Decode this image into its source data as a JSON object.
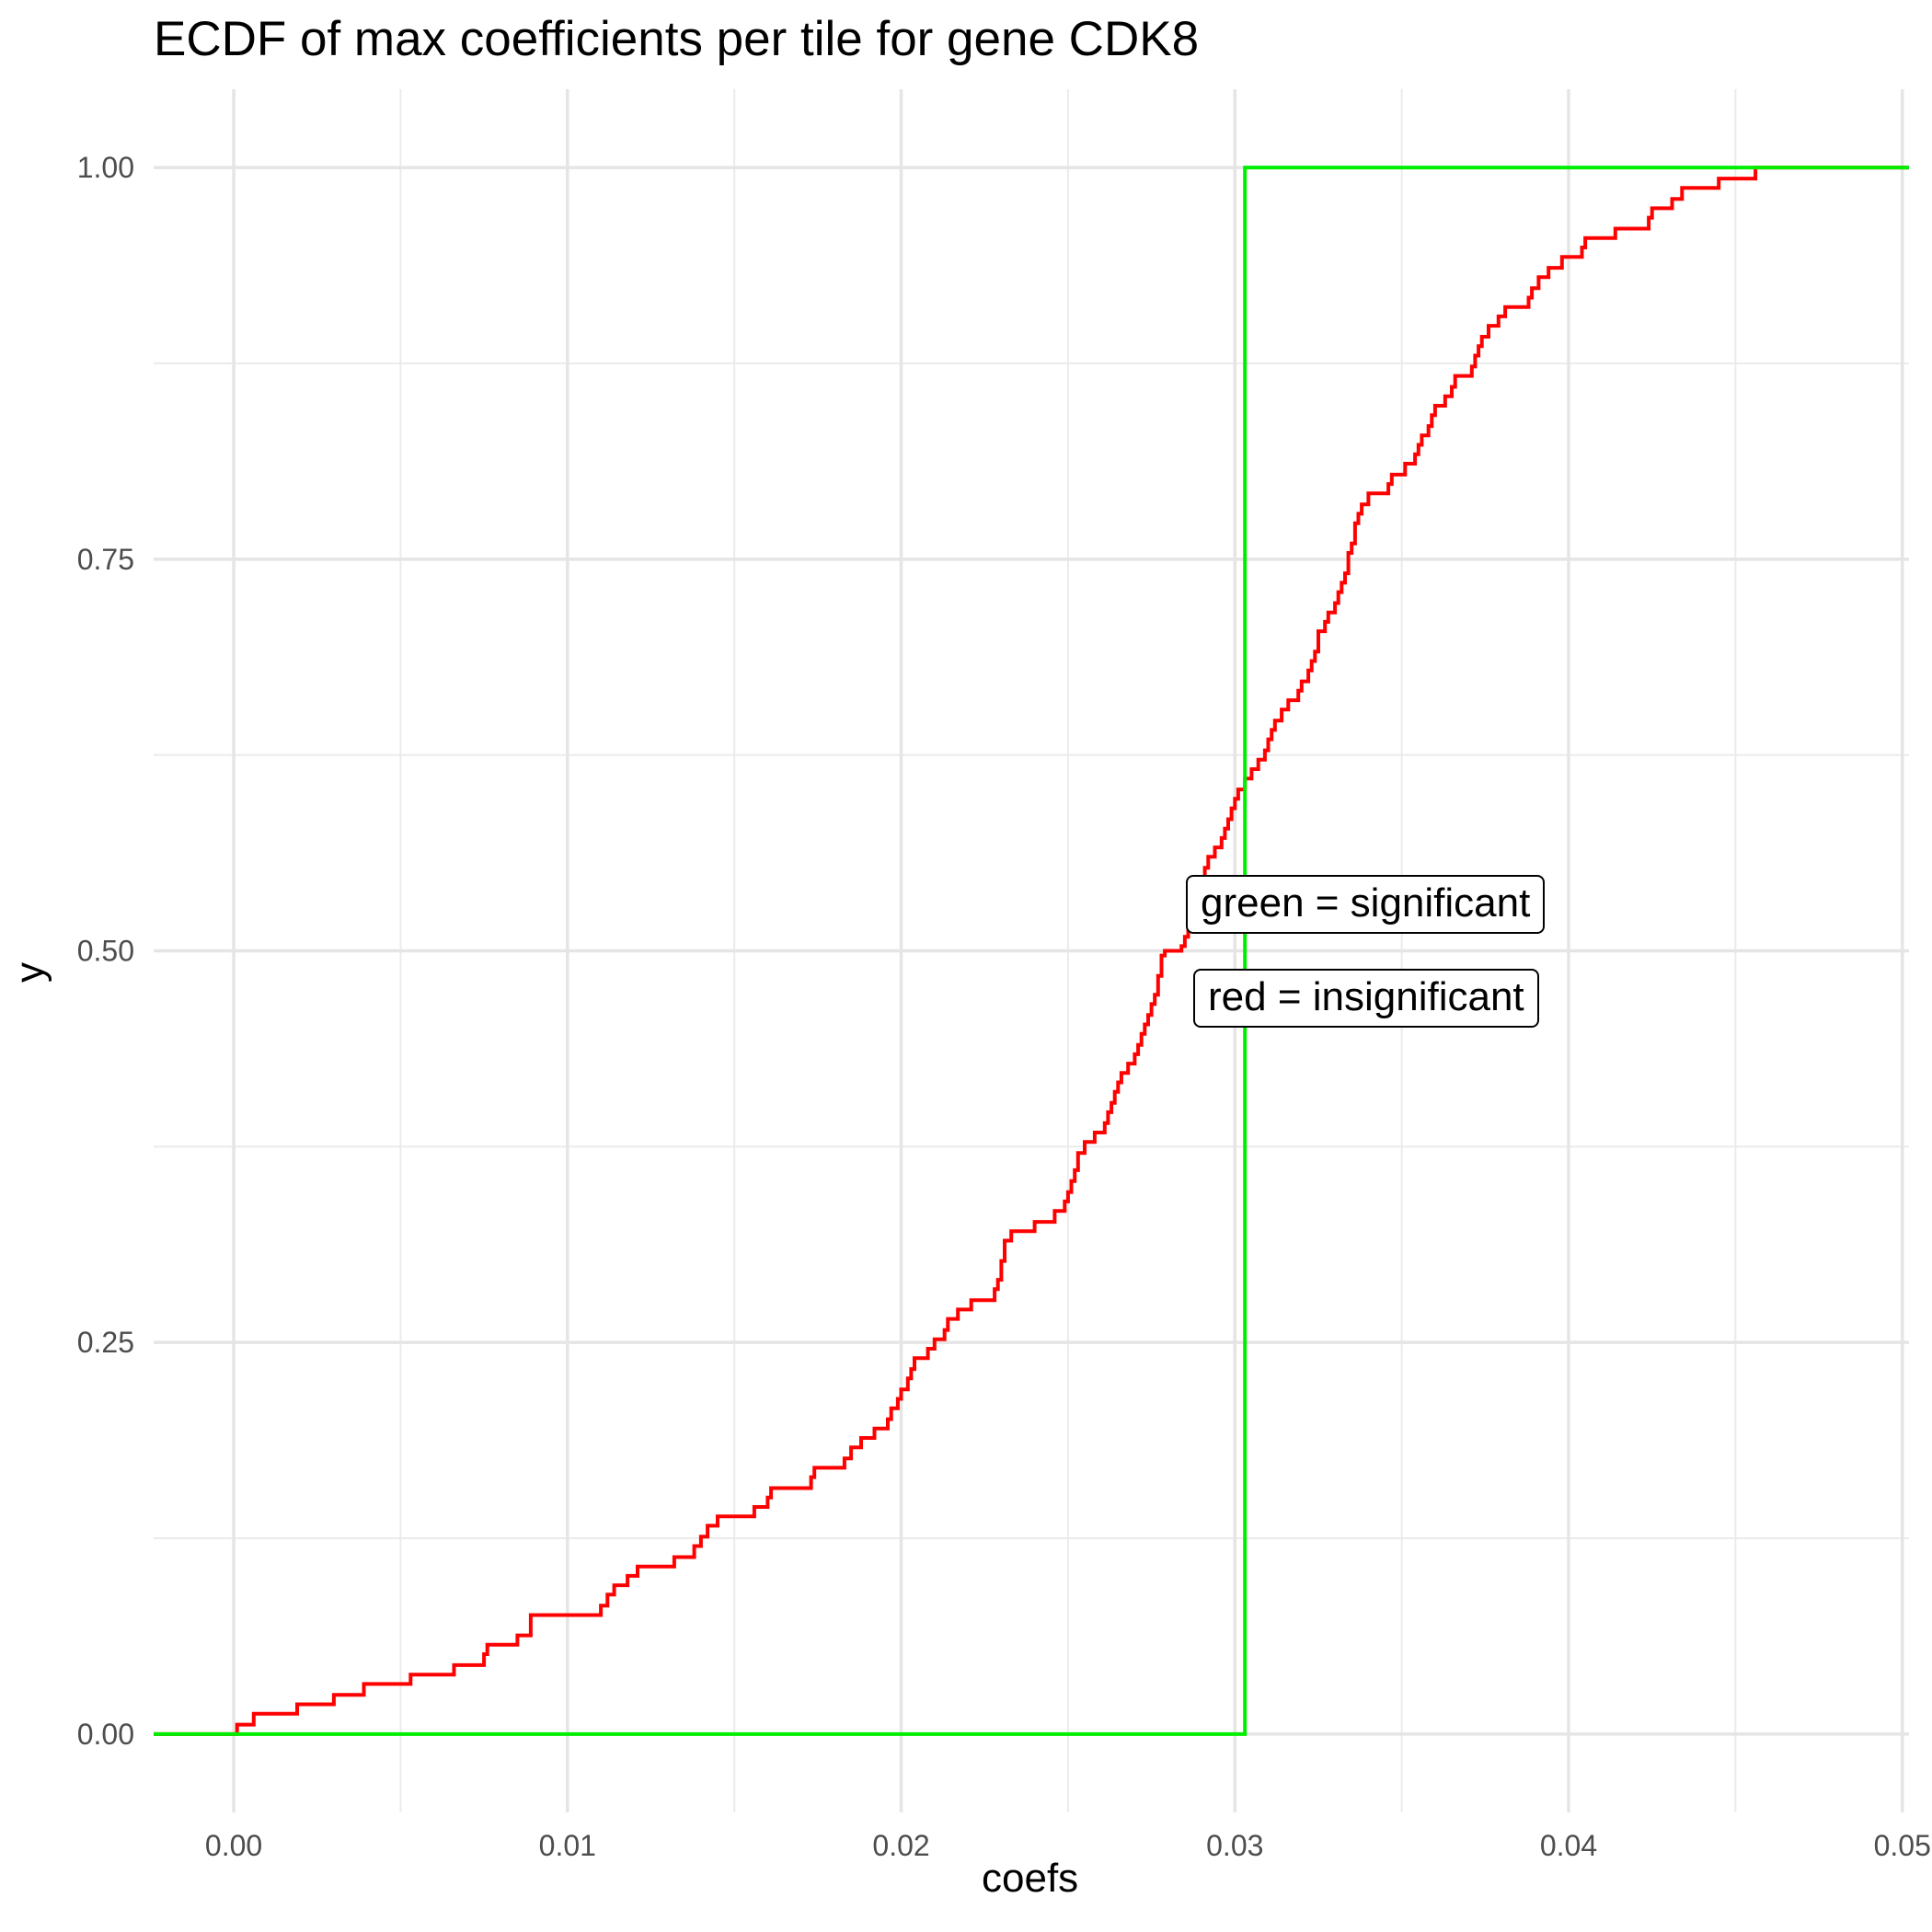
{
  "chart_data": {
    "type": "line",
    "subtype": "step (ECDF)",
    "title": "ECDF of max coefficients per tile for gene CDK8",
    "xlabel": "coefs",
    "ylabel": "y",
    "xlim": [
      -0.0024,
      0.0502
    ],
    "ylim": [
      -0.05,
      1.05
    ],
    "x_ticks": [
      "0.00",
      "0.01",
      "0.02",
      "0.03",
      "0.04",
      "0.05"
    ],
    "y_ticks": [
      "0.00",
      "0.25",
      "0.50",
      "0.75",
      "1.00"
    ],
    "grid": true,
    "legend": "none",
    "annotations": [
      {
        "text": "green = significant",
        "x": 0.0341,
        "y": 0.53
      },
      {
        "text": "red = insignificant",
        "x": 0.0341,
        "y": 0.47
      }
    ],
    "series": [
      {
        "color": "#ff0000",
        "points": [
          [
            -0.0024,
            0.0
          ],
          [
            0.0,
            0.0
          ],
          [
            0.0001,
            0.006
          ],
          [
            0.0006,
            0.013
          ],
          [
            0.0019,
            0.019
          ],
          [
            0.003,
            0.025
          ],
          [
            0.0039,
            0.032
          ],
          [
            0.0053,
            0.038
          ],
          [
            0.0066,
            0.044
          ],
          [
            0.0075,
            0.051
          ],
          [
            0.0076,
            0.057
          ],
          [
            0.0085,
            0.063
          ],
          [
            0.0089,
            0.076
          ],
          [
            0.0109,
            0.076
          ],
          [
            0.011,
            0.082
          ],
          [
            0.0112,
            0.089
          ],
          [
            0.0114,
            0.095
          ],
          [
            0.0118,
            0.101
          ],
          [
            0.0121,
            0.107
          ],
          [
            0.0132,
            0.113
          ],
          [
            0.0138,
            0.12
          ],
          [
            0.014,
            0.126
          ],
          [
            0.0142,
            0.133
          ],
          [
            0.0145,
            0.139
          ],
          [
            0.0156,
            0.145
          ],
          [
            0.016,
            0.151
          ],
          [
            0.0161,
            0.157
          ],
          [
            0.0173,
            0.164
          ],
          [
            0.0174,
            0.17
          ],
          [
            0.0183,
            0.176
          ],
          [
            0.0185,
            0.183
          ],
          [
            0.0188,
            0.189
          ],
          [
            0.0192,
            0.195
          ],
          [
            0.0196,
            0.201
          ],
          [
            0.0197,
            0.208
          ],
          [
            0.0199,
            0.214
          ],
          [
            0.02,
            0.22
          ],
          [
            0.0202,
            0.227
          ],
          [
            0.0203,
            0.233
          ],
          [
            0.0204,
            0.24
          ],
          [
            0.0208,
            0.246
          ],
          [
            0.021,
            0.252
          ],
          [
            0.0213,
            0.258
          ],
          [
            0.0214,
            0.265
          ],
          [
            0.0217,
            0.271
          ],
          [
            0.0221,
            0.277
          ],
          [
            0.0228,
            0.284
          ],
          [
            0.0229,
            0.29
          ],
          [
            0.023,
            0.302
          ],
          [
            0.0231,
            0.315
          ],
          [
            0.0233,
            0.321
          ],
          [
            0.024,
            0.327
          ],
          [
            0.0246,
            0.334
          ],
          [
            0.0249,
            0.34
          ],
          [
            0.025,
            0.346
          ],
          [
            0.0251,
            0.353
          ],
          [
            0.0252,
            0.36
          ],
          [
            0.0253,
            0.371
          ],
          [
            0.0255,
            0.378
          ],
          [
            0.0258,
            0.384
          ],
          [
            0.0261,
            0.39
          ],
          [
            0.0262,
            0.397
          ],
          [
            0.0263,
            0.403
          ],
          [
            0.0264,
            0.41
          ],
          [
            0.0265,
            0.416
          ],
          [
            0.0266,
            0.422
          ],
          [
            0.0268,
            0.428
          ],
          [
            0.027,
            0.434
          ],
          [
            0.0271,
            0.44
          ],
          [
            0.0272,
            0.447
          ],
          [
            0.0273,
            0.453
          ],
          [
            0.0274,
            0.459
          ],
          [
            0.0275,
            0.466
          ],
          [
            0.0276,
            0.472
          ],
          [
            0.0277,
            0.478
          ],
          [
            0.0277,
            0.484
          ],
          [
            0.0278,
            0.49
          ],
          [
            0.0278,
            0.497
          ],
          [
            0.0279,
            0.5
          ],
          [
            0.0284,
            0.503
          ],
          [
            0.0285,
            0.509
          ],
          [
            0.0286,
            0.516
          ],
          [
            0.0287,
            0.522
          ],
          [
            0.0288,
            0.528
          ],
          [
            0.0289,
            0.534
          ],
          [
            0.029,
            0.54
          ],
          [
            0.029,
            0.547
          ],
          [
            0.0291,
            0.553
          ],
          [
            0.0292,
            0.56
          ],
          [
            0.0294,
            0.566
          ],
          [
            0.0296,
            0.572
          ],
          [
            0.0297,
            0.578
          ],
          [
            0.0298,
            0.584
          ],
          [
            0.0299,
            0.591
          ],
          [
            0.03,
            0.597
          ],
          [
            0.0301,
            0.603
          ],
          [
            0.0303,
            0.61
          ],
          [
            0.0305,
            0.616
          ],
          [
            0.0307,
            0.622
          ],
          [
            0.0309,
            0.628
          ],
          [
            0.031,
            0.635
          ],
          [
            0.0311,
            0.641
          ],
          [
            0.0312,
            0.647
          ],
          [
            0.0314,
            0.654
          ],
          [
            0.0316,
            0.66
          ],
          [
            0.0319,
            0.666
          ],
          [
            0.032,
            0.672
          ],
          [
            0.0322,
            0.679
          ],
          [
            0.0323,
            0.685
          ],
          [
            0.0324,
            0.691
          ],
          [
            0.0325,
            0.704
          ],
          [
            0.0327,
            0.71
          ],
          [
            0.0328,
            0.716
          ],
          [
            0.033,
            0.722
          ],
          [
            0.0331,
            0.729
          ],
          [
            0.0332,
            0.735
          ],
          [
            0.0333,
            0.741
          ],
          [
            0.0334,
            0.748
          ],
          [
            0.0334,
            0.754
          ],
          [
            0.0335,
            0.76
          ],
          [
            0.0336,
            0.773
          ],
          [
            0.0337,
            0.779
          ],
          [
            0.0338,
            0.785
          ],
          [
            0.034,
            0.792
          ],
          [
            0.0346,
            0.798
          ],
          [
            0.0347,
            0.804
          ],
          [
            0.0351,
            0.811
          ],
          [
            0.0354,
            0.817
          ],
          [
            0.0355,
            0.823
          ],
          [
            0.0356,
            0.829
          ],
          [
            0.0358,
            0.835
          ],
          [
            0.0359,
            0.842
          ],
          [
            0.036,
            0.848
          ],
          [
            0.0363,
            0.854
          ],
          [
            0.0365,
            0.86
          ],
          [
            0.0366,
            0.867
          ],
          [
            0.0371,
            0.873
          ],
          [
            0.0372,
            0.88
          ],
          [
            0.0373,
            0.886
          ],
          [
            0.0374,
            0.892
          ],
          [
            0.0376,
            0.899
          ],
          [
            0.0379,
            0.905
          ],
          [
            0.0381,
            0.911
          ],
          [
            0.0388,
            0.917
          ],
          [
            0.0389,
            0.923
          ],
          [
            0.0391,
            0.93
          ],
          [
            0.0394,
            0.936
          ],
          [
            0.0398,
            0.943
          ],
          [
            0.0404,
            0.949
          ],
          [
            0.0405,
            0.955
          ],
          [
            0.0414,
            0.961
          ],
          [
            0.0424,
            0.968
          ],
          [
            0.0425,
            0.974
          ],
          [
            0.0431,
            0.98
          ],
          [
            0.0434,
            0.987
          ],
          [
            0.0445,
            0.993
          ],
          [
            0.0456,
            1.0
          ],
          [
            0.0502,
            1.0
          ]
        ]
      },
      {
        "color": "#00ee00",
        "points": [
          [
            -0.0024,
            0.0
          ],
          [
            0.0303,
            0.0
          ],
          [
            0.0303,
            1.0
          ],
          [
            0.0502,
            1.0
          ]
        ]
      }
    ]
  }
}
